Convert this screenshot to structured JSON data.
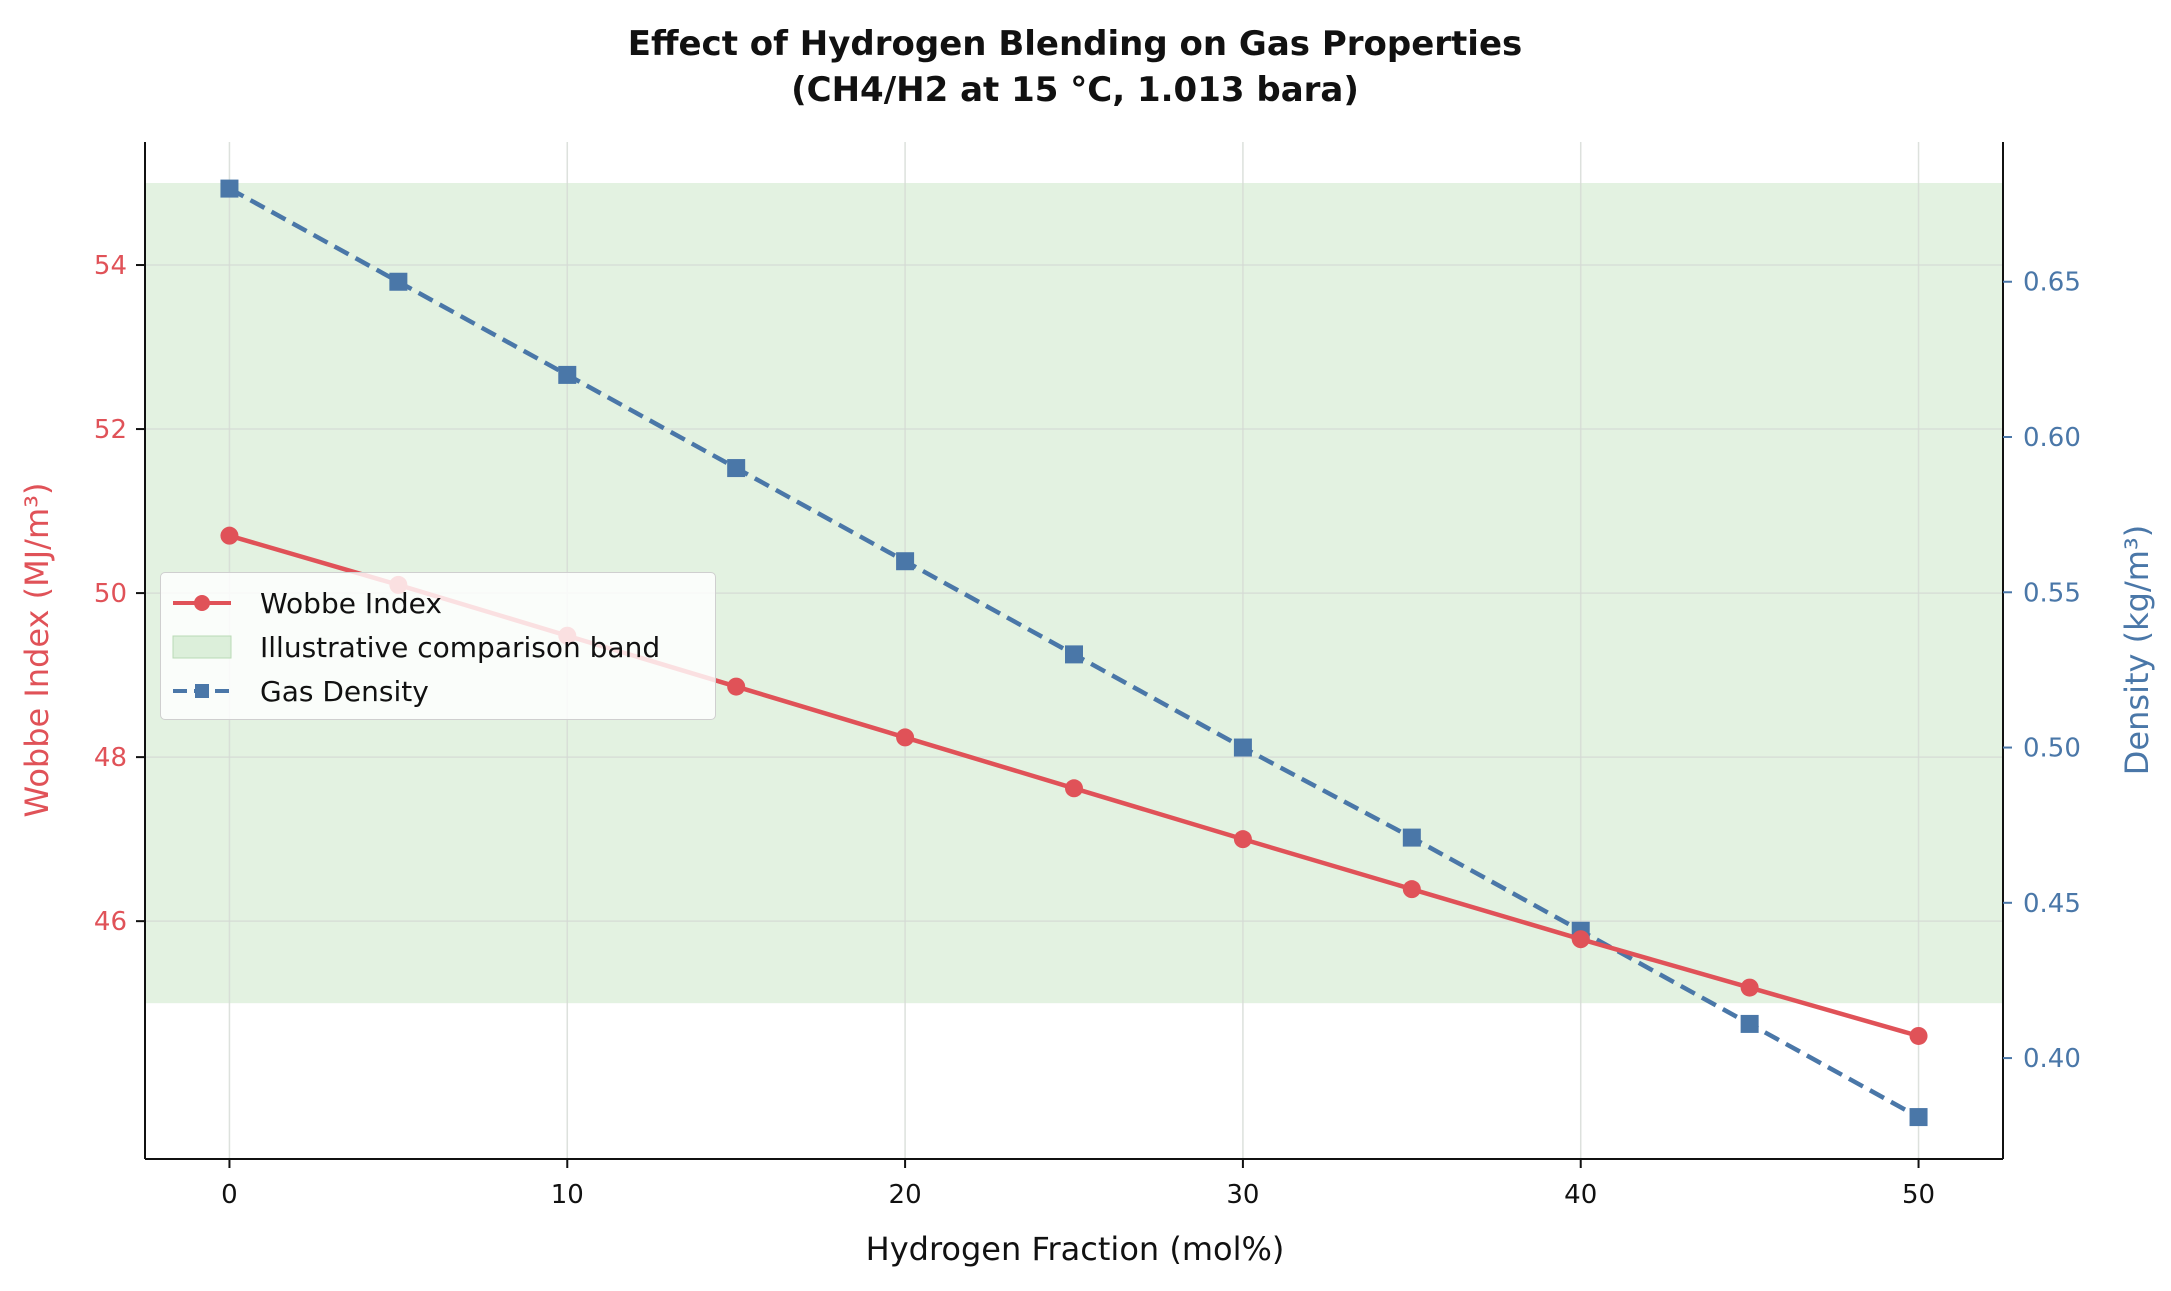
{
  "chart_data": {
    "type": "line",
    "title": "Effect of Hydrogen Blending on Gas Properties",
    "subtitle": "(CH4/H2 at 15 °C, 1.013 bara)",
    "xlabel": "Hydrogen Fraction (mol%)",
    "ylabel_left": "Wobbe Index (MJ/m³)",
    "ylabel_right": "Density (kg/m³)",
    "x": [
      0,
      5,
      10,
      15,
      20,
      25,
      30,
      35,
      40,
      45,
      50
    ],
    "x_ticks": [
      0,
      10,
      20,
      30,
      40,
      50
    ],
    "xlim": [
      -2.5,
      52.5
    ],
    "ylim_left": [
      43.1,
      55.5
    ],
    "ylim_right": [
      0.3675,
      0.695
    ],
    "y_ticks_left": [
      46,
      48,
      50,
      52,
      54
    ],
    "y_ticks_right": [
      0.4,
      0.45,
      0.5,
      0.55,
      0.6,
      0.65
    ],
    "grid": true,
    "legend_position": "center-left",
    "band": {
      "name": "Illustrative comparison band",
      "axis": "left",
      "y_range": [
        45.0,
        55.0
      ]
    },
    "series": [
      {
        "name": "Gas Density",
        "axis": "right",
        "style": "dashed",
        "marker": "square",
        "values": [
          0.68,
          0.65,
          0.62,
          0.59,
          0.56,
          0.53,
          0.5,
          0.471,
          0.441,
          0.411,
          0.381
        ]
      },
      {
        "name": "Wobbe Index",
        "axis": "left",
        "style": "solid",
        "marker": "circle",
        "values": [
          50.7,
          50.1,
          49.48,
          48.86,
          48.24,
          47.62,
          47.0,
          46.39,
          45.78,
          45.19,
          44.6
        ]
      }
    ],
    "colors": {
      "wobbe": "#e05258",
      "density": "#4a77a8",
      "band": "#c8e6c4",
      "grid": "#d5d9d5"
    }
  },
  "legend": {
    "wobbe": "Wobbe Index",
    "band": "Illustrative comparison band",
    "density": "Gas Density"
  }
}
